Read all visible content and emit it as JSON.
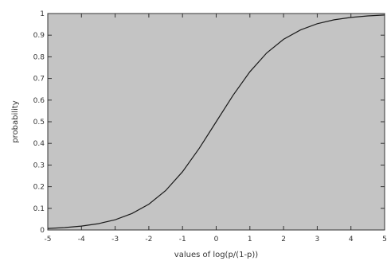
{
  "colors": {
    "plot_background": "#c4c4c4",
    "curve": "#1a1a1a",
    "frame": "#333333"
  },
  "chart_data": {
    "type": "line",
    "title": "",
    "xlabel": "values of log(p/(1-p))",
    "ylabel": "probability",
    "xlim": [
      -5,
      5
    ],
    "ylim": [
      0,
      1
    ],
    "grid": false,
    "x_ticks": [
      -5,
      -4,
      -3,
      -2,
      -1,
      0,
      1,
      2,
      3,
      4,
      5
    ],
    "y_ticks": [
      0,
      0.1,
      0.2,
      0.3,
      0.4,
      0.5,
      0.6,
      0.7,
      0.8,
      0.9,
      1
    ],
    "x_tick_labels": [
      "-5",
      "-4",
      "-3",
      "-2",
      "-1",
      "0",
      "1",
      "2",
      "3",
      "4",
      "5"
    ],
    "y_tick_labels": [
      "0",
      "0.1",
      "0.2",
      "0.3",
      "0.4",
      "0.5",
      "0.6",
      "0.7",
      "0.8",
      "0.9",
      "1"
    ],
    "series": [
      {
        "x": [
          -5,
          -4.5,
          -4,
          -3.5,
          -3,
          -2.5,
          -2,
          -1.5,
          -1,
          -0.5,
          0,
          0.5,
          1,
          1.5,
          2,
          2.5,
          3,
          3.5,
          4,
          4.5,
          5
        ],
        "y": [
          0.007,
          0.011,
          0.018,
          0.029,
          0.047,
          0.076,
          0.119,
          0.182,
          0.269,
          0.378,
          0.5,
          0.622,
          0.731,
          0.818,
          0.881,
          0.924,
          0.953,
          0.971,
          0.982,
          0.989,
          0.993
        ]
      }
    ]
  }
}
